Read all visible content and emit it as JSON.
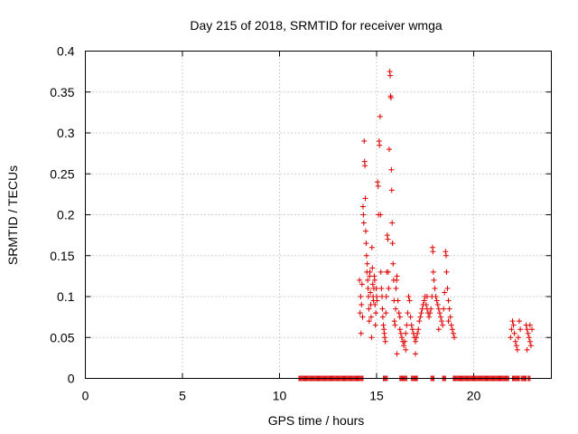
{
  "chart_data": {
    "type": "scatter",
    "title": "Day 215 of 2018, SRMTID for receiver wmga",
    "xlabel": "GPS time / hours",
    "ylabel": "SRMTID / TECUs",
    "xlim": [
      0,
      24
    ],
    "ylim": [
      0,
      0.4
    ],
    "x_ticks": [
      0,
      5,
      10,
      15,
      20
    ],
    "x_tick_labels": [
      "0",
      "5",
      "10",
      "15",
      "20"
    ],
    "y_ticks": [
      0,
      0.05,
      0.1,
      0.15,
      0.2,
      0.25,
      0.3,
      0.35,
      0.4
    ],
    "y_tick_labels": [
      "0",
      "0.05",
      "0.1",
      "0.15",
      "0.2",
      "0.25",
      "0.3",
      "0.35",
      "0.4"
    ],
    "grid": true,
    "marker": "+",
    "color": "#dd0000",
    "series": [
      {
        "name": "SRMTID",
        "points": [
          [
            14.12,
            0.12
          ],
          [
            14.15,
            0.08
          ],
          [
            14.18,
            0.1
          ],
          [
            14.2,
            0.055
          ],
          [
            14.22,
            0.09
          ],
          [
            14.25,
            0.115
          ],
          [
            14.28,
            0.075
          ],
          [
            14.3,
            0.21
          ],
          [
            14.32,
            0.2
          ],
          [
            14.34,
            0.19
          ],
          [
            14.36,
            0.29
          ],
          [
            14.38,
            0.265
          ],
          [
            14.4,
            0.26
          ],
          [
            14.42,
            0.22
          ],
          [
            14.44,
            0.18
          ],
          [
            14.46,
            0.165
          ],
          [
            14.48,
            0.15
          ],
          [
            14.5,
            0.13
          ],
          [
            14.52,
            0.14
          ],
          [
            14.54,
            0.12
          ],
          [
            14.56,
            0.11
          ],
          [
            14.58,
            0.1
          ],
          [
            14.6,
            0.085
          ],
          [
            14.62,
            0.07
          ],
          [
            14.64,
            0.125
          ],
          [
            14.66,
            0.13
          ],
          [
            14.68,
            0.105
          ],
          [
            14.7,
            0.09
          ],
          [
            14.72,
            0.075
          ],
          [
            14.74,
            0.05
          ],
          [
            14.76,
            0.16
          ],
          [
            14.78,
            0.135
          ],
          [
            14.8,
            0.115
          ],
          [
            14.82,
            0.1
          ],
          [
            14.84,
            0.095
          ],
          [
            14.86,
            0.11
          ],
          [
            14.88,
            0.125
          ],
          [
            14.9,
            0.12
          ],
          [
            14.92,
            0.09
          ],
          [
            14.94,
            0.065
          ],
          [
            14.96,
            0.08
          ],
          [
            14.98,
            0.11
          ],
          [
            15.0,
            0.1
          ],
          [
            15.02,
            0.095
          ],
          [
            15.05,
            0.24
          ],
          [
            15.08,
            0.235
          ],
          [
            15.1,
            0.2
          ],
          [
            15.13,
            0.29
          ],
          [
            15.15,
            0.285
          ],
          [
            15.18,
            0.32
          ],
          [
            15.2,
            0.2
          ],
          [
            15.22,
            0.13
          ],
          [
            15.25,
            0.11
          ],
          [
            15.28,
            0.1
          ],
          [
            15.3,
            0.085
          ],
          [
            15.32,
            0.075
          ],
          [
            15.35,
            0.065
          ],
          [
            15.38,
            0.06
          ],
          [
            15.4,
            0.055
          ],
          [
            15.42,
            0.05
          ],
          [
            15.45,
            0.045
          ],
          [
            15.48,
            0.08
          ],
          [
            15.5,
            0.1
          ],
          [
            15.52,
            0.13
          ],
          [
            15.55,
            0.175
          ],
          [
            15.58,
            0.17
          ],
          [
            15.6,
            0.13
          ],
          [
            15.62,
            0.11
          ],
          [
            15.65,
            0.28
          ],
          [
            15.68,
            0.375
          ],
          [
            15.7,
            0.37
          ],
          [
            15.72,
            0.345
          ],
          [
            15.74,
            0.343
          ],
          [
            15.76,
            0.255
          ],
          [
            15.78,
            0.23
          ],
          [
            15.8,
            0.19
          ],
          [
            15.82,
            0.165
          ],
          [
            15.85,
            0.14
          ],
          [
            15.88,
            0.12
          ],
          [
            15.9,
            0.095
          ],
          [
            15.92,
            0.07
          ],
          [
            15.95,
            0.065
          ],
          [
            15.98,
            0.085
          ],
          [
            16.0,
            0.11
          ],
          [
            16.03,
            0.12
          ],
          [
            16.05,
            0.125
          ],
          [
            16.1,
            0.095
          ],
          [
            16.15,
            0.08
          ],
          [
            16.2,
            0.06
          ],
          [
            16.25,
            0.055
          ],
          [
            16.3,
            0.05
          ],
          [
            16.35,
            0.045
          ],
          [
            16.4,
            0.04
          ],
          [
            16.45,
            0.045
          ],
          [
            16.5,
            0.055
          ],
          [
            16.55,
            0.065
          ],
          [
            16.6,
            0.08
          ],
          [
            16.65,
            0.1
          ],
          [
            16.7,
            0.095
          ],
          [
            16.75,
            0.075
          ],
          [
            16.8,
            0.065
          ],
          [
            16.85,
            0.06
          ],
          [
            16.9,
            0.055
          ],
          [
            16.95,
            0.05
          ],
          [
            17.0,
            0.045
          ],
          [
            17.05,
            0.05
          ],
          [
            17.1,
            0.055
          ],
          [
            17.15,
            0.06
          ],
          [
            17.2,
            0.07
          ],
          [
            17.25,
            0.075
          ],
          [
            17.3,
            0.08
          ],
          [
            17.35,
            0.085
          ],
          [
            17.4,
            0.09
          ],
          [
            17.45,
            0.095
          ],
          [
            17.5,
            0.1
          ],
          [
            17.55,
            0.09
          ],
          [
            17.6,
            0.085
          ],
          [
            17.65,
            0.08
          ],
          [
            17.7,
            0.075
          ],
          [
            17.75,
            0.08
          ],
          [
            17.8,
            0.085
          ],
          [
            17.85,
            0.1
          ],
          [
            17.88,
            0.16
          ],
          [
            17.9,
            0.155
          ],
          [
            17.92,
            0.13
          ],
          [
            17.95,
            0.12
          ],
          [
            18.0,
            0.11
          ],
          [
            18.05,
            0.1
          ],
          [
            18.1,
            0.095
          ],
          [
            18.15,
            0.09
          ],
          [
            18.2,
            0.085
          ],
          [
            18.25,
            0.08
          ],
          [
            18.3,
            0.075
          ],
          [
            18.35,
            0.07
          ],
          [
            18.4,
            0.065
          ],
          [
            18.45,
            0.085
          ],
          [
            18.5,
            0.105
          ],
          [
            18.55,
            0.155
          ],
          [
            18.58,
            0.15
          ],
          [
            18.6,
            0.13
          ],
          [
            18.65,
            0.11
          ],
          [
            18.7,
            0.095
          ],
          [
            18.75,
            0.085
          ],
          [
            18.8,
            0.075
          ],
          [
            18.85,
            0.065
          ],
          [
            18.9,
            0.06
          ],
          [
            18.95,
            0.055
          ],
          [
            19.0,
            0.05
          ],
          [
            16.05,
            0.03
          ],
          [
            16.2,
            0.075
          ],
          [
            16.5,
            0.035
          ],
          [
            17.0,
            0.03
          ],
          [
            17.6,
            0.1
          ],
          [
            18.2,
            0.06
          ],
          [
            18.7,
            0.07
          ],
          [
            21.9,
            0.05
          ],
          [
            21.95,
            0.06
          ],
          [
            22.0,
            0.07
          ],
          [
            22.05,
            0.065
          ],
          [
            22.1,
            0.055
          ],
          [
            22.15,
            0.045
          ],
          [
            22.2,
            0.04
          ],
          [
            22.25,
            0.035
          ],
          [
            22.3,
            0.05
          ],
          [
            22.35,
            0.07
          ],
          [
            22.4,
            0.06
          ],
          [
            22.7,
            0.065
          ],
          [
            22.75,
            0.06
          ],
          [
            22.8,
            0.055
          ],
          [
            22.85,
            0.05
          ],
          [
            22.9,
            0.045
          ],
          [
            22.95,
            0.04
          ],
          [
            23.0,
            0.06
          ],
          [
            22.75,
            0.035
          ],
          [
            22.9,
            0.065
          ]
        ]
      }
    ],
    "zero_segments": [
      [
        11.0,
        14.3
      ],
      [
        15.35,
        15.55
      ],
      [
        16.2,
        16.55
      ],
      [
        16.8,
        17.1
      ],
      [
        17.8,
        17.95
      ],
      [
        18.4,
        18.55
      ],
      [
        18.95,
        21.8
      ],
      [
        22.0,
        22.35
      ],
      [
        22.45,
        22.7
      ],
      [
        22.8,
        22.9
      ]
    ]
  }
}
